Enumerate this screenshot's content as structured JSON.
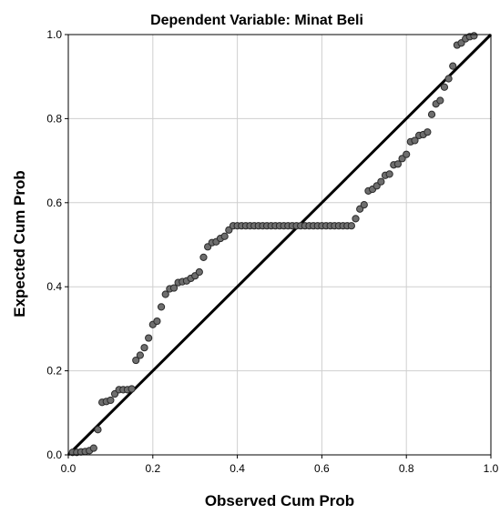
{
  "chart_data": {
    "type": "scatter",
    "title": "Dependent Variable: Minat Beli",
    "xlabel": "Observed Cum Prob",
    "ylabel": "Expected Cum Prob",
    "xlim": [
      0.0,
      1.0
    ],
    "ylim": [
      0.0,
      1.0
    ],
    "xticks": [
      "0.0",
      "0.2",
      "0.4",
      "0.6",
      "0.8",
      "1.0"
    ],
    "yticks": [
      "0.0",
      "0.2",
      "0.4",
      "0.6",
      "0.8",
      "1.0"
    ],
    "grid": true,
    "reference_line": {
      "from": [
        0.0,
        0.0
      ],
      "to": [
        1.0,
        1.0
      ]
    },
    "points": [
      [
        0.01,
        0.006
      ],
      [
        0.02,
        0.006
      ],
      [
        0.03,
        0.007
      ],
      [
        0.04,
        0.008
      ],
      [
        0.05,
        0.01
      ],
      [
        0.06,
        0.016
      ],
      [
        0.07,
        0.06
      ],
      [
        0.08,
        0.125
      ],
      [
        0.09,
        0.127
      ],
      [
        0.1,
        0.13
      ],
      [
        0.11,
        0.145
      ],
      [
        0.12,
        0.155
      ],
      [
        0.13,
        0.155
      ],
      [
        0.14,
        0.155
      ],
      [
        0.15,
        0.157
      ],
      [
        0.16,
        0.225
      ],
      [
        0.17,
        0.237
      ],
      [
        0.18,
        0.255
      ],
      [
        0.19,
        0.278
      ],
      [
        0.2,
        0.31
      ],
      [
        0.21,
        0.318
      ],
      [
        0.22,
        0.352
      ],
      [
        0.23,
        0.382
      ],
      [
        0.24,
        0.395
      ],
      [
        0.25,
        0.397
      ],
      [
        0.26,
        0.41
      ],
      [
        0.27,
        0.412
      ],
      [
        0.28,
        0.414
      ],
      [
        0.29,
        0.42
      ],
      [
        0.3,
        0.426
      ],
      [
        0.31,
        0.435
      ],
      [
        0.32,
        0.47
      ],
      [
        0.33,
        0.495
      ],
      [
        0.34,
        0.505
      ],
      [
        0.35,
        0.507
      ],
      [
        0.36,
        0.515
      ],
      [
        0.37,
        0.52
      ],
      [
        0.38,
        0.535
      ],
      [
        0.39,
        0.545
      ],
      [
        0.4,
        0.545
      ],
      [
        0.41,
        0.545
      ],
      [
        0.42,
        0.545
      ],
      [
        0.43,
        0.545
      ],
      [
        0.44,
        0.545
      ],
      [
        0.45,
        0.545
      ],
      [
        0.46,
        0.545
      ],
      [
        0.47,
        0.545
      ],
      [
        0.48,
        0.545
      ],
      [
        0.49,
        0.545
      ],
      [
        0.5,
        0.545
      ],
      [
        0.51,
        0.545
      ],
      [
        0.52,
        0.545
      ],
      [
        0.53,
        0.545
      ],
      [
        0.54,
        0.545
      ],
      [
        0.55,
        0.545
      ],
      [
        0.56,
        0.545
      ],
      [
        0.57,
        0.545
      ],
      [
        0.58,
        0.545
      ],
      [
        0.59,
        0.545
      ],
      [
        0.6,
        0.545
      ],
      [
        0.61,
        0.545
      ],
      [
        0.62,
        0.545
      ],
      [
        0.63,
        0.545
      ],
      [
        0.64,
        0.545
      ],
      [
        0.65,
        0.545
      ],
      [
        0.66,
        0.545
      ],
      [
        0.67,
        0.545
      ],
      [
        0.68,
        0.562
      ],
      [
        0.69,
        0.585
      ],
      [
        0.7,
        0.595
      ],
      [
        0.71,
        0.628
      ],
      [
        0.72,
        0.632
      ],
      [
        0.73,
        0.64
      ],
      [
        0.74,
        0.65
      ],
      [
        0.75,
        0.665
      ],
      [
        0.76,
        0.668
      ],
      [
        0.77,
        0.69
      ],
      [
        0.78,
        0.692
      ],
      [
        0.79,
        0.705
      ],
      [
        0.8,
        0.715
      ],
      [
        0.81,
        0.745
      ],
      [
        0.82,
        0.748
      ],
      [
        0.83,
        0.76
      ],
      [
        0.84,
        0.762
      ],
      [
        0.85,
        0.768
      ],
      [
        0.86,
        0.81
      ],
      [
        0.87,
        0.835
      ],
      [
        0.88,
        0.843
      ],
      [
        0.89,
        0.875
      ],
      [
        0.9,
        0.895
      ],
      [
        0.91,
        0.925
      ],
      [
        0.92,
        0.975
      ],
      [
        0.93,
        0.98
      ],
      [
        0.94,
        0.99
      ],
      [
        0.95,
        0.995
      ],
      [
        0.96,
        0.997
      ]
    ]
  }
}
